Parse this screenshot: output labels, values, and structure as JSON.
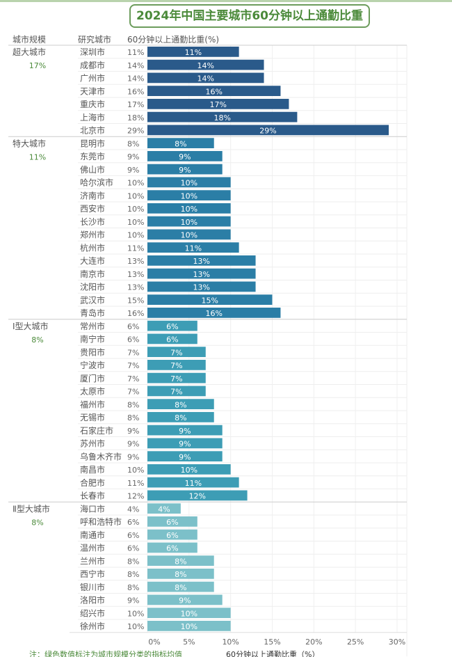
{
  "title": "2024年中国主要城市60分钟以上通勤比重",
  "headers": {
    "group": "城市规模",
    "city": "研究城市",
    "value": "60分钟以上通勤比重(%)"
  },
  "note": "注：绿色数值标注为城市规模分类的指标均值",
  "chart_data": {
    "type": "bar",
    "orientation": "horizontal",
    "xlabel": "60分钟以上通勤比重（%）",
    "xlim": [
      0,
      30
    ],
    "xticks": [
      "0%",
      "5%",
      "10%",
      "15%",
      "20%",
      "25%",
      "30%"
    ],
    "grid": true,
    "groups": [
      {
        "name": "超大城市",
        "average": "17%",
        "color": "#2a5a8a",
        "cities": [
          "深圳市",
          "成都市",
          "广州市",
          "天津市",
          "重庆市",
          "上海市",
          "北京市"
        ],
        "values": [
          11,
          14,
          14,
          16,
          17,
          18,
          29
        ]
      },
      {
        "name": "特大城市",
        "average": "11%",
        "color": "#2b7ea6",
        "cities": [
          "昆明市",
          "东莞市",
          "佛山市",
          "哈尔滨市",
          "济南市",
          "西安市",
          "长沙市",
          "郑州市",
          "杭州市",
          "大连市",
          "南京市",
          "沈阳市",
          "武汉市",
          "青岛市"
        ],
        "values": [
          8,
          9,
          9,
          10,
          10,
          10,
          10,
          10,
          11,
          13,
          13,
          13,
          15,
          16
        ]
      },
      {
        "name": "Ⅰ型大城市",
        "average": "8%",
        "color": "#3d9db5",
        "cities": [
          "常州市",
          "南宁市",
          "贵阳市",
          "宁波市",
          "厦门市",
          "太原市",
          "福州市",
          "无锡市",
          "石家庄市",
          "苏州市",
          "乌鲁木齐市",
          "南昌市",
          "合肥市",
          "长春市"
        ],
        "values": [
          6,
          6,
          7,
          7,
          7,
          7,
          8,
          8,
          9,
          9,
          9,
          10,
          11,
          12
        ]
      },
      {
        "name": "Ⅱ型大城市",
        "average": "8%",
        "color": "#7cc0c9",
        "cities": [
          "海口市",
          "呼和浩特市",
          "南通市",
          "温州市",
          "兰州市",
          "西宁市",
          "银川市",
          "洛阳市",
          "绍兴市",
          "徐州市"
        ],
        "values": [
          4,
          6,
          6,
          6,
          8,
          8,
          8,
          9,
          10,
          10
        ]
      }
    ]
  }
}
